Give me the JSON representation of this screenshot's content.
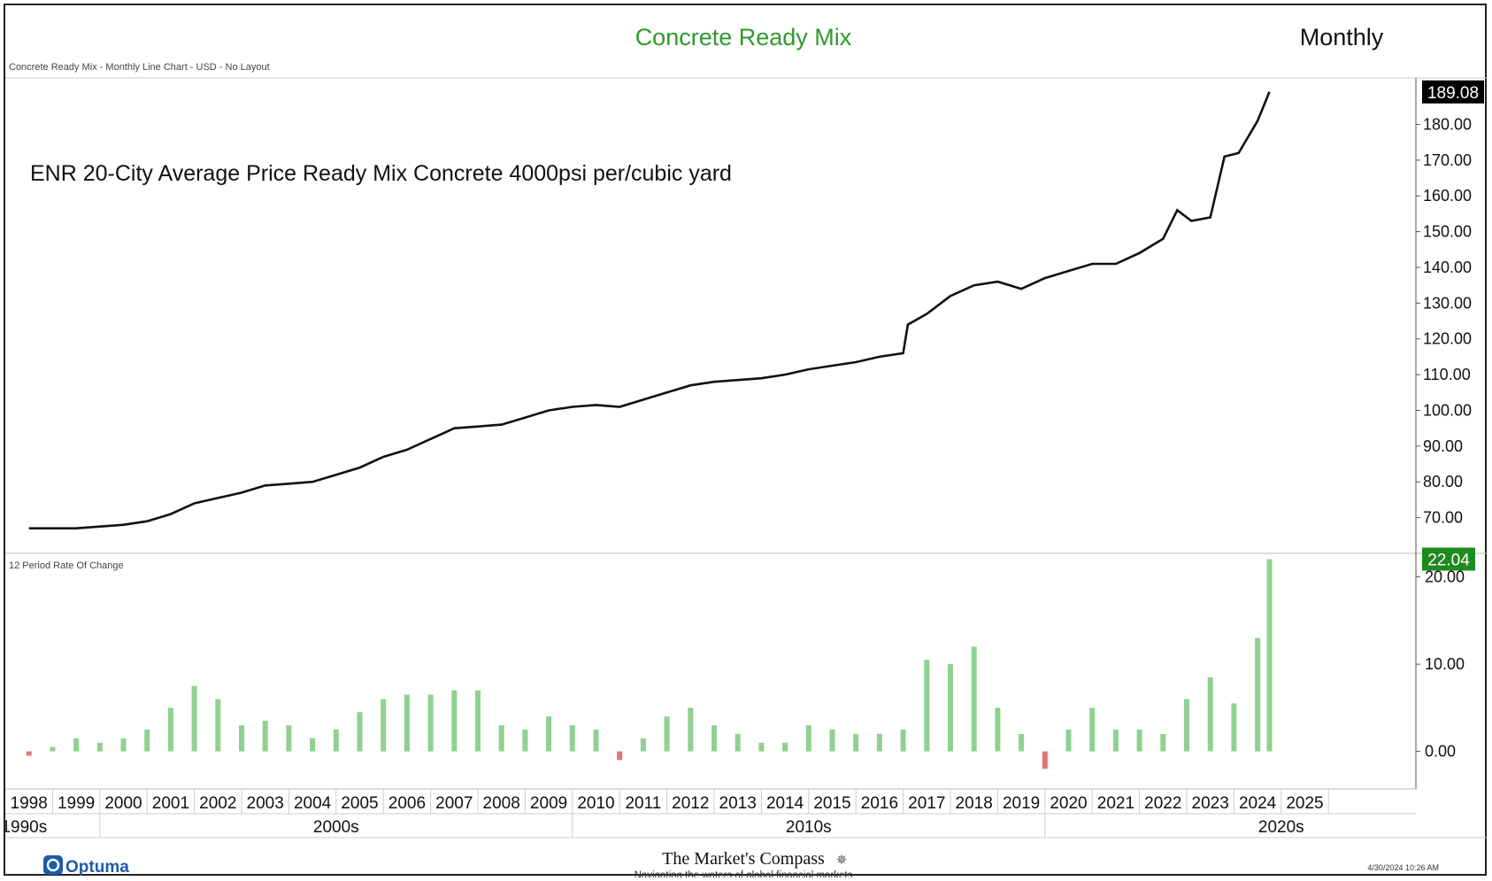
{
  "header": {
    "title": "Concrete Ready Mix",
    "period": "Monthly",
    "subtitle": "Concrete Ready Mix - Monthly Line Chart - USD - No Layout"
  },
  "colors": {
    "title_green": "#2e9a2e",
    "price_line": "#111111",
    "roc_positive": "#8fd18f",
    "roc_negative": "#e57373",
    "roc_badge": "#1f8a1f",
    "price_badge": "#000000"
  },
  "footer": {
    "logo_text": "Optuma",
    "compass_title": "The Market's Compass",
    "compass_tagline": "Navigating the waters of global financial markets",
    "timestamp": "4/30/2024 10:26 AM"
  },
  "chart_data": [
    {
      "type": "line",
      "annotation": "ENR 20-City Average Price Ready Mix Concrete 4000psi per/cubic yard",
      "ylim": [
        60,
        193
      ],
      "yticks": [
        "70.00",
        "80.00",
        "90.00",
        "100.00",
        "110.00",
        "120.00",
        "130.00",
        "140.00",
        "150.00",
        "160.00",
        "170.00",
        "180.00"
      ],
      "ytick_values": [
        70,
        80,
        90,
        100,
        110,
        120,
        130,
        140,
        150,
        160,
        170,
        180
      ],
      "last_value_label": "189.08",
      "last_value": 189.08,
      "x": [
        "1998.0",
        "1998.5",
        "1999.0",
        "1999.5",
        "2000.0",
        "2000.5",
        "2001.0",
        "2001.5",
        "2002.0",
        "2002.5",
        "2003.0",
        "2003.5",
        "2004.0",
        "2004.5",
        "2005.0",
        "2005.5",
        "2006.0",
        "2006.5",
        "2007.0",
        "2007.5",
        "2008.0",
        "2008.5",
        "2009.0",
        "2009.5",
        "2010.0",
        "2010.5",
        "2011.0",
        "2011.5",
        "2012.0",
        "2012.5",
        "2013.0",
        "2013.5",
        "2014.0",
        "2014.5",
        "2015.0",
        "2015.5",
        "2016.0",
        "2016.5",
        "2016.6",
        "2017.0",
        "2017.5",
        "2018.0",
        "2018.5",
        "2019.0",
        "2019.5",
        "2020.0",
        "2020.5",
        "2021.0",
        "2021.5",
        "2022.0",
        "2022.3",
        "2022.6",
        "2023.0",
        "2023.3",
        "2023.6",
        "2024.0",
        "2024.25"
      ],
      "values": [
        67,
        67,
        67,
        67.5,
        68,
        69,
        71,
        74,
        75.5,
        77,
        79,
        79.5,
        80,
        82,
        84,
        87,
        89,
        92,
        95,
        95.5,
        96,
        98,
        100,
        101,
        101.5,
        101,
        103,
        105,
        107,
        108,
        108.5,
        109,
        110,
        111.5,
        112.5,
        113.5,
        115,
        116,
        124,
        127,
        132,
        135,
        136,
        134,
        137,
        139,
        141,
        141,
        144,
        148,
        156,
        153,
        154,
        171,
        172,
        181,
        189.08
      ]
    },
    {
      "type": "bar",
      "title": "12 Period Rate Of Change",
      "ylim": [
        -4,
        22.5
      ],
      "yticks": [
        "0.00",
        "10.00",
        "20.00"
      ],
      "ytick_values": [
        0,
        10,
        20
      ],
      "last_value_label": "22.04",
      "last_value": 22.04,
      "x_ticks": [
        "1998",
        "1999",
        "2000",
        "2001",
        "2002",
        "2003",
        "2004",
        "2005",
        "2006",
        "2007",
        "2008",
        "2009",
        "2010",
        "2011",
        "2012",
        "2013",
        "2014",
        "2015",
        "2016",
        "2017",
        "2018",
        "2019",
        "2020",
        "2021",
        "2022",
        "2023",
        "2024",
        "2025"
      ],
      "decades": [
        "1990s",
        "2000s",
        "2010s",
        "2020s"
      ],
      "roc_x": [
        1998.0,
        1998.5,
        1999.0,
        1999.5,
        2000.0,
        2000.5,
        2001.0,
        2001.5,
        2002.0,
        2002.5,
        2003.0,
        2003.5,
        2004.0,
        2004.5,
        2005.0,
        2005.5,
        2006.0,
        2006.5,
        2007.0,
        2007.5,
        2008.0,
        2008.5,
        2009.0,
        2009.5,
        2010.0,
        2010.5,
        2011.0,
        2011.5,
        2012.0,
        2012.5,
        2013.0,
        2013.5,
        2014.0,
        2014.5,
        2015.0,
        2015.5,
        2016.0,
        2016.5,
        2017.0,
        2017.5,
        2018.0,
        2018.5,
        2019.0,
        2019.5,
        2020.0,
        2020.5,
        2021.0,
        2021.5,
        2022.0,
        2022.5,
        2023.0,
        2023.5,
        2024.0,
        2024.25
      ],
      "roc_values": [
        -0.5,
        0.5,
        1.5,
        1.0,
        1.5,
        2.5,
        5,
        7.5,
        6,
        3,
        3.5,
        3,
        1.5,
        2.5,
        4.5,
        6,
        6.5,
        6.5,
        7,
        7,
        3,
        2.5,
        4,
        3,
        2.5,
        -1,
        1.5,
        4,
        5,
        3,
        2,
        1,
        1,
        3,
        2.5,
        2,
        2,
        2.5,
        10.5,
        10,
        12,
        5,
        2,
        -2,
        2.5,
        5,
        2.5,
        2.5,
        2,
        6,
        8.5,
        5.5,
        13,
        22.04
      ]
    }
  ]
}
